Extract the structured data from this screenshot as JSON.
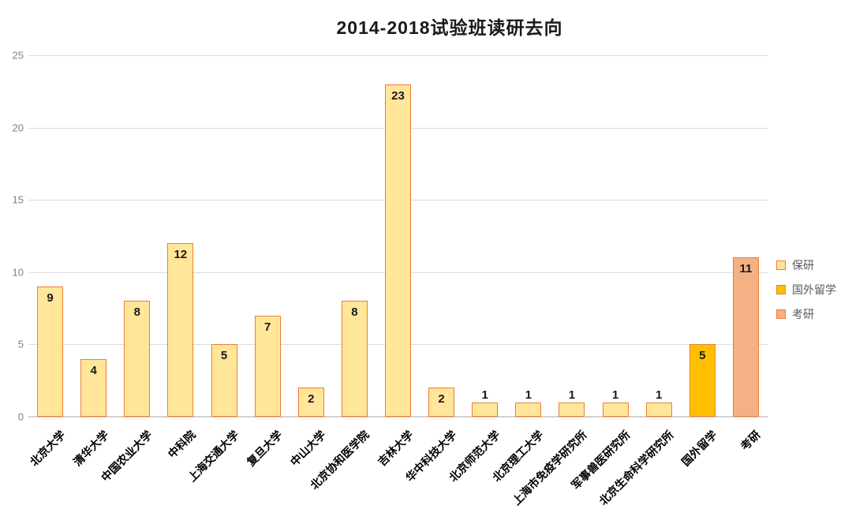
{
  "title": "2014-2018试验班读研去向",
  "colors": {
    "bar_border": "#ED7D31",
    "baoyan_fill": "#FFE699",
    "guowailiuxue_fill": "#FFC000",
    "kaoyan_fill": "#F4B183",
    "gridline": "#dadada",
    "axis_text": "#808080",
    "legend_text": "#595959",
    "title_text": "#1a1a1a",
    "data_label_text": "#1a1a1a"
  },
  "legend": {
    "position": "right",
    "items": [
      {
        "label": "保研",
        "fill": "#FFE699",
        "border": "#ED7D31"
      },
      {
        "label": "国外留学",
        "fill": "#FFC000",
        "border": "#ED7D31"
      },
      {
        "label": "考研",
        "fill": "#F4B183",
        "border": "#ED7D31"
      }
    ]
  },
  "chart_data": {
    "type": "bar",
    "title": "2014-2018试验班读研去向",
    "categories": [
      "北京大学",
      "清华大学",
      "中国农业大学",
      "中科院",
      "上海交通大学",
      "复旦大学",
      "中山大学",
      "北京协和医学院",
      "吉林大学",
      "华中科技大学",
      "北京师范大学",
      "北京理工大学",
      "上海市免疫学研究所",
      "军事兽医研究所",
      "北京生命科学研究所",
      "国外留学",
      "考研"
    ],
    "values": [
      9,
      4,
      8,
      12,
      5,
      7,
      2,
      8,
      23,
      2,
      1,
      1,
      1,
      1,
      1,
      5,
      11
    ],
    "bar_series": [
      "保研",
      "保研",
      "保研",
      "保研",
      "保研",
      "保研",
      "保研",
      "保研",
      "保研",
      "保研",
      "保研",
      "保研",
      "保研",
      "保研",
      "保研",
      "国外留学",
      "考研"
    ],
    "xlabel": "",
    "ylabel": "",
    "ylim": [
      0,
      25
    ],
    "yticks": [
      0,
      5,
      10,
      15,
      20,
      25
    ],
    "grid": true,
    "data_labels": true,
    "legend_position": "right"
  }
}
